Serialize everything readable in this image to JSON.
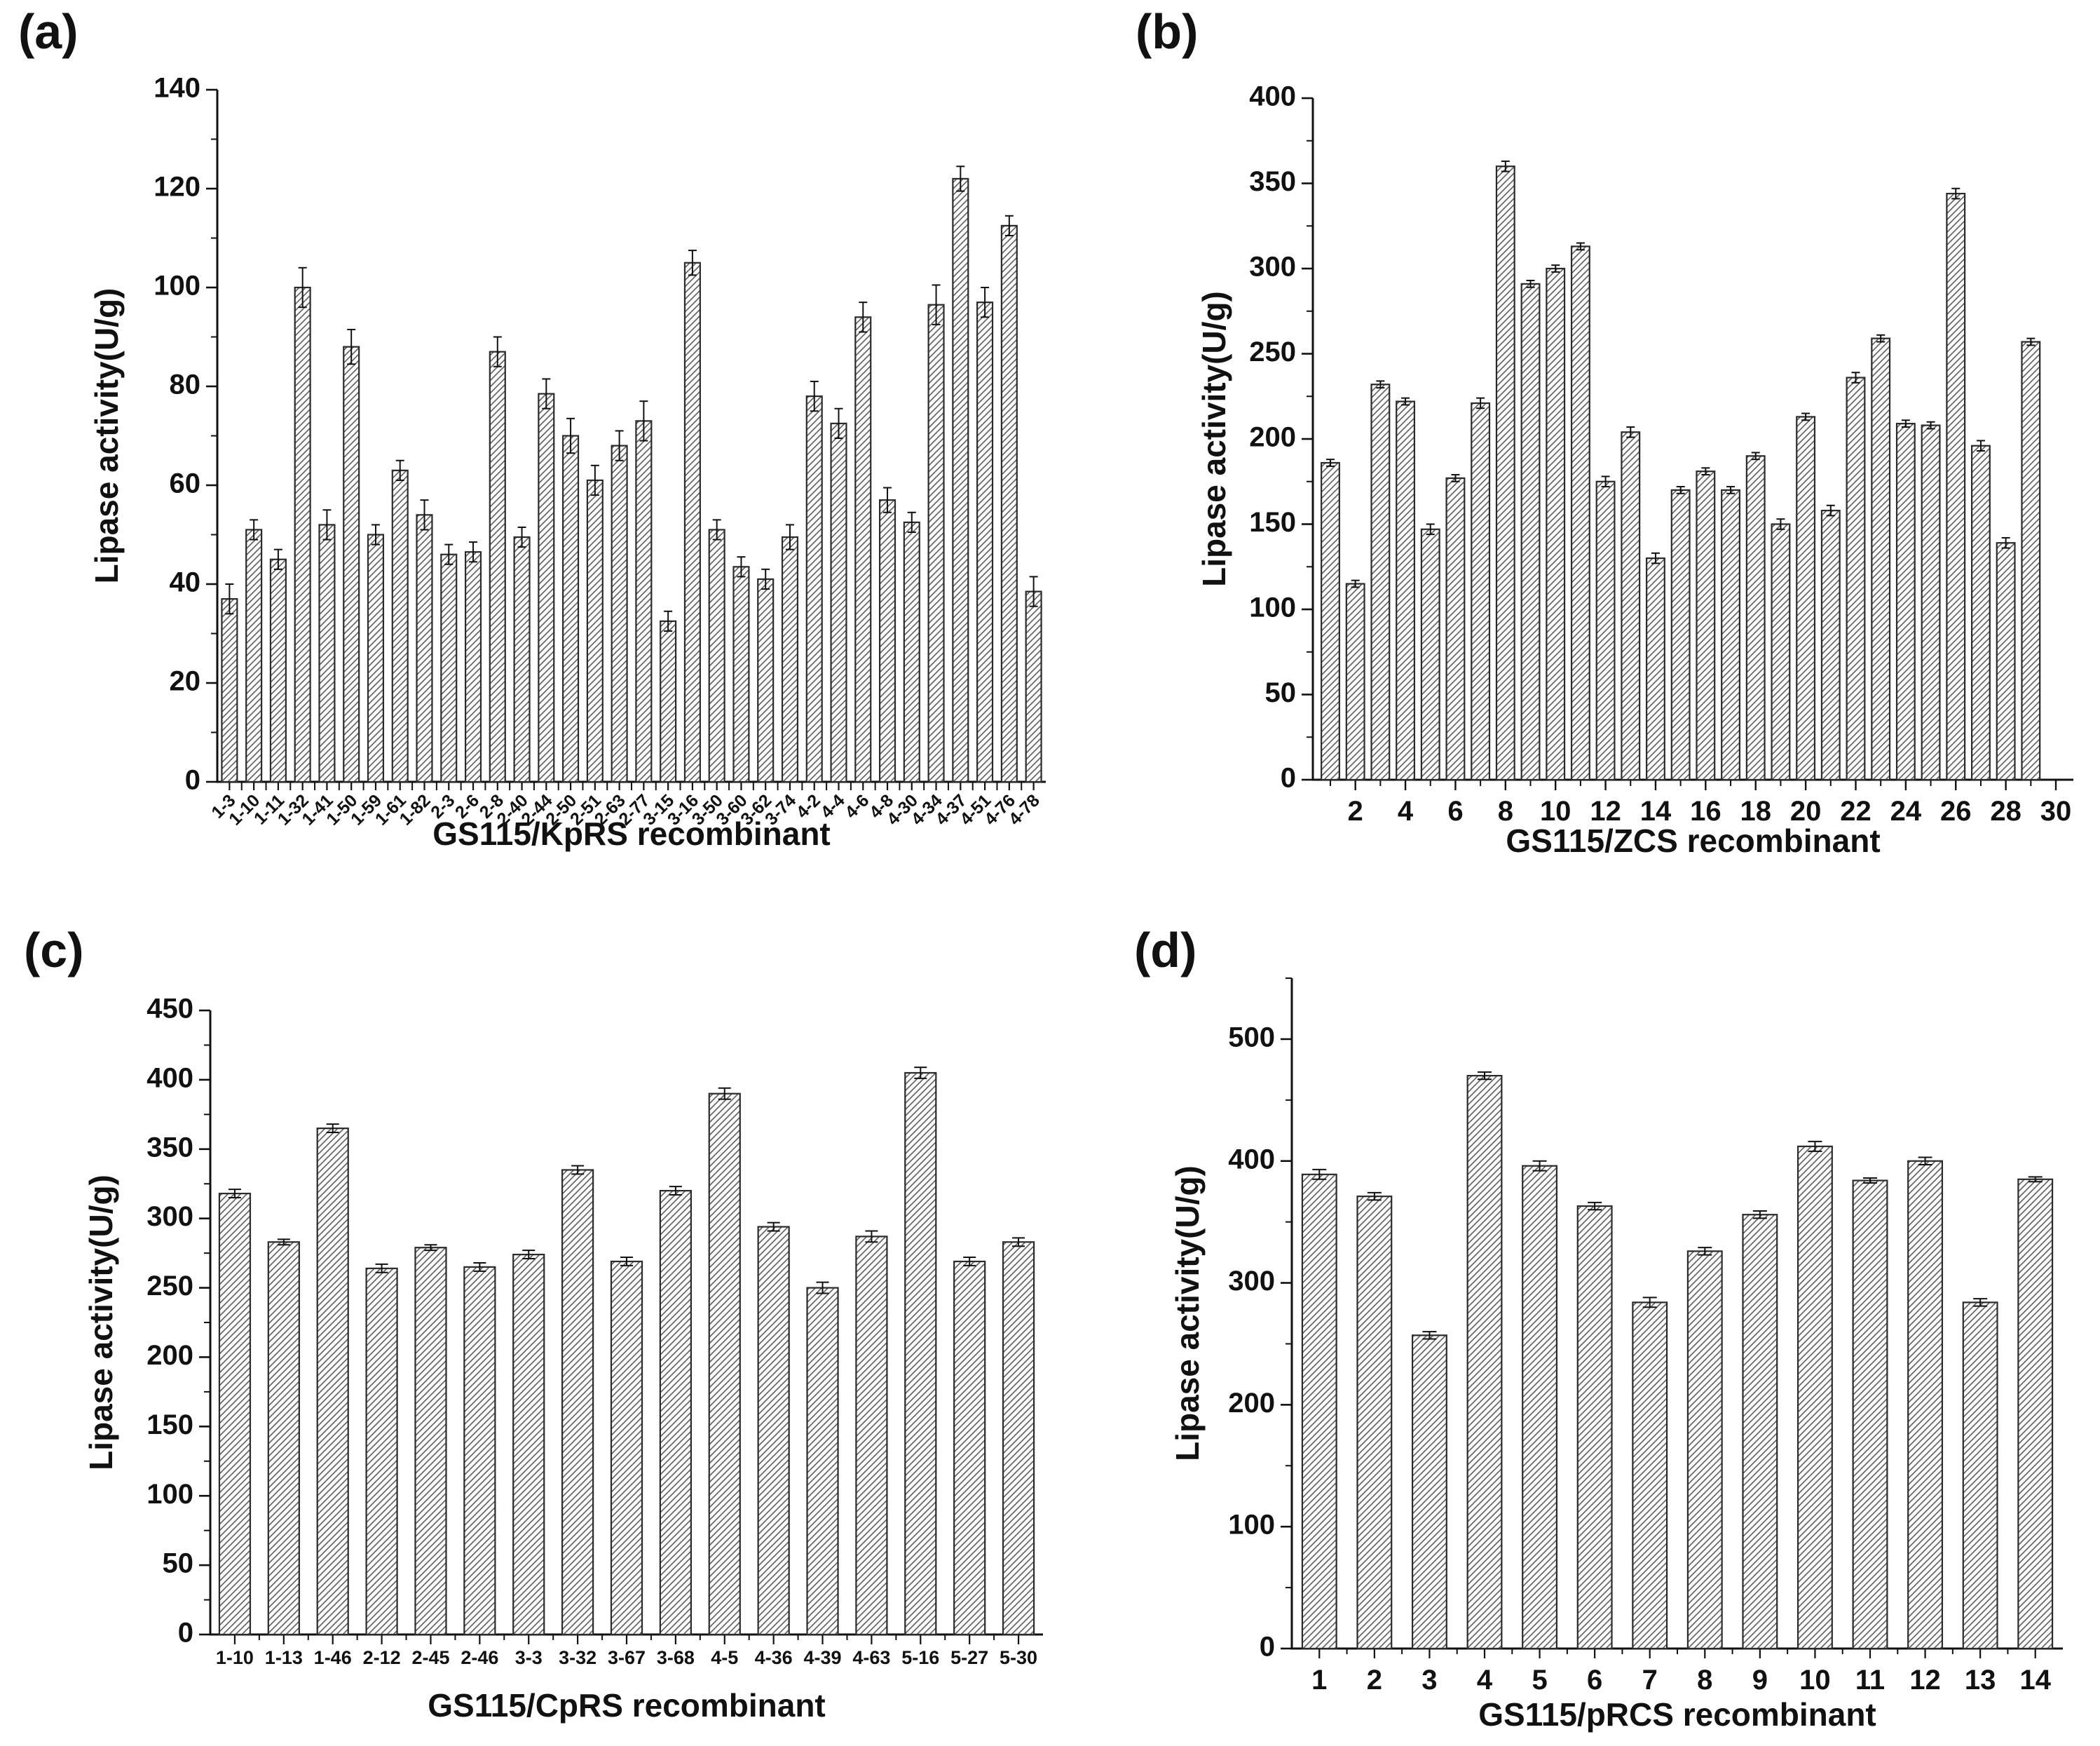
{
  "figure": {
    "panels": [
      {
        "id": "a",
        "letter": "(a)",
        "ylabel": "Lipase activity(U/g)",
        "xlabel": "GS115/KpRS recombinant",
        "y_top": 140,
        "y_major": 20,
        "y_minor": 10,
        "y_ticks": [
          "0",
          "20",
          "40",
          "60",
          "80",
          "100",
          "120",
          "140"
        ],
        "x_mode": "cat",
        "x_label_rotated": true,
        "categories": [
          "1-3",
          "1-10",
          "1-11",
          "1-32",
          "1-41",
          "1-50",
          "1-59",
          "1-61",
          "1-82",
          "2-3",
          "2-6",
          "2-8",
          "2-40",
          "2-44",
          "2-50",
          "2-51",
          "2-63",
          "2-77",
          "3-15",
          "3-16",
          "3-50",
          "3-60",
          "3-62",
          "3-74",
          "4-2",
          "4-4",
          "4-6",
          "4-8",
          "4-30",
          "4-34",
          "4-37",
          "4-51",
          "4-76",
          "4-78"
        ],
        "values": [
          37,
          51,
          45,
          100,
          52,
          88,
          50,
          63,
          54,
          46,
          46.5,
          87,
          49.5,
          78.5,
          70,
          61,
          68,
          73,
          32.5,
          105,
          51,
          43.5,
          41,
          49.5,
          78,
          72.5,
          94,
          57,
          52.5,
          96.5,
          122,
          97,
          112.5,
          38.5
        ],
        "errors": [
          3,
          2,
          2,
          4,
          3,
          3.5,
          2,
          2,
          3,
          2,
          2,
          3,
          2,
          3,
          3.5,
          3,
          3,
          4,
          2,
          2.5,
          2,
          2,
          2,
          2.5,
          3,
          3,
          3,
          2.5,
          2,
          4,
          2.5,
          3,
          2,
          3
        ]
      },
      {
        "id": "b",
        "letter": "(b)",
        "ylabel": "Lipase activity(U/g)",
        "xlabel": "GS115/ZCS recombinant",
        "y_top": 400,
        "y_major": 50,
        "y_minor": 25,
        "y_ticks": [
          "0",
          "50",
          "100",
          "150",
          "200",
          "250",
          "300",
          "350",
          "400"
        ],
        "x_mode": "num",
        "x_count": 29,
        "x_tick_max": 30,
        "x_label_every": 2,
        "x_ticks": [
          "2",
          "4",
          "6",
          "8",
          "10",
          "12",
          "14",
          "16",
          "18",
          "20",
          "22",
          "24",
          "26",
          "28",
          "30"
        ],
        "values": [
          186,
          115,
          232,
          222,
          147,
          177,
          221,
          360,
          291,
          300,
          313,
          175,
          204,
          130,
          170,
          181,
          170,
          190,
          150,
          213,
          158,
          236,
          259,
          209,
          208,
          344,
          196,
          139,
          257
        ],
        "errors": [
          2,
          2,
          2,
          2,
          3,
          2,
          3,
          3,
          2,
          2,
          2,
          3,
          3,
          3,
          2,
          2,
          2,
          2,
          3,
          2,
          3,
          3,
          2,
          2,
          2,
          3,
          3,
          3,
          2
        ]
      },
      {
        "id": "c",
        "letter": "(c)",
        "ylabel": "Lipase activity(U/g)",
        "xlabel": "GS115/CpRS  recombinant",
        "y_top": 450,
        "y_major": 50,
        "y_minor": 25,
        "y_ticks": [
          "0",
          "50",
          "100",
          "150",
          "200",
          "250",
          "300",
          "350",
          "400",
          "450"
        ],
        "x_mode": "cat",
        "x_label_rotated": false,
        "categories": [
          "1-10",
          "1-13",
          "1-46",
          "2-12",
          "2-45",
          "2-46",
          "3-3",
          "3-32",
          "3-67",
          "3-68",
          "4-5",
          "4-36",
          "4-39",
          "4-63",
          "5-16",
          "5-27",
          "5-30"
        ],
        "values": [
          318,
          283,
          365,
          264,
          279,
          265,
          274,
          335,
          269,
          320,
          390,
          294,
          250,
          287,
          405,
          269,
          283
        ],
        "errors": [
          3,
          2,
          3,
          3,
          2,
          3,
          3,
          3,
          3,
          3,
          4,
          3,
          4,
          4,
          4,
          3,
          3
        ]
      },
      {
        "id": "d",
        "letter": "(d)",
        "ylabel": "Lipase activity(U/g)",
        "xlabel": "GS115/pRCS recombinant",
        "y_top": 550,
        "y_major": 100,
        "y_minor": 50,
        "y_ticks": [
          "0",
          "100",
          "200",
          "300",
          "400",
          "500"
        ],
        "x_mode": "cat",
        "x_label_rotated": false,
        "categories": [
          "1",
          "2",
          "3",
          "4",
          "5",
          "6",
          "7",
          "8",
          "9",
          "10",
          "11",
          "12",
          "13",
          "14"
        ],
        "values": [
          389,
          371,
          257,
          470,
          396,
          363,
          284,
          326,
          356,
          412,
          384,
          400,
          284,
          385
        ],
        "errors": [
          4,
          3,
          3,
          3,
          4,
          3,
          4,
          3,
          3,
          4,
          2,
          3,
          3,
          2
        ]
      }
    ]
  },
  "chart_data": [
    {
      "type": "bar",
      "title": "",
      "xlabel": "GS115/KpRS recombinant",
      "ylabel": "Lipase activity(U/g)",
      "ylim": [
        0,
        140
      ],
      "grid": false,
      "categories": [
        "1-3",
        "1-10",
        "1-11",
        "1-32",
        "1-41",
        "1-50",
        "1-59",
        "1-61",
        "1-82",
        "2-3",
        "2-6",
        "2-8",
        "2-40",
        "2-44",
        "2-50",
        "2-51",
        "2-63",
        "2-77",
        "3-15",
        "3-16",
        "3-50",
        "3-60",
        "3-62",
        "3-74",
        "4-2",
        "4-4",
        "4-6",
        "4-8",
        "4-30",
        "4-34",
        "4-37",
        "4-51",
        "4-76",
        "4-78"
      ],
      "values": [
        37,
        51,
        45,
        100,
        52,
        88,
        50,
        63,
        54,
        46,
        46.5,
        87,
        49.5,
        78.5,
        70,
        61,
        68,
        73,
        32.5,
        105,
        51,
        43.5,
        41,
        49.5,
        78,
        72.5,
        94,
        57,
        52.5,
        96.5,
        122,
        97,
        112.5,
        38.5
      ]
    },
    {
      "type": "bar",
      "title": "",
      "xlabel": "GS115/ZCS recombinant",
      "ylabel": "Lipase activity(U/g)",
      "ylim": [
        0,
        400
      ],
      "grid": false,
      "categories": [
        "1",
        "2",
        "3",
        "4",
        "5",
        "6",
        "7",
        "8",
        "9",
        "10",
        "11",
        "12",
        "13",
        "14",
        "15",
        "16",
        "17",
        "18",
        "19",
        "20",
        "21",
        "22",
        "23",
        "24",
        "25",
        "26",
        "27",
        "28",
        "29"
      ],
      "values": [
        186,
        115,
        232,
        222,
        147,
        177,
        221,
        360,
        291,
        300,
        313,
        175,
        204,
        130,
        170,
        181,
        170,
        190,
        150,
        213,
        158,
        236,
        259,
        209,
        208,
        344,
        196,
        139,
        257
      ]
    },
    {
      "type": "bar",
      "title": "",
      "xlabel": "GS115/CpRS  recombinant",
      "ylabel": "Lipase activity(U/g)",
      "ylim": [
        0,
        450
      ],
      "grid": false,
      "categories": [
        "1-10",
        "1-13",
        "1-46",
        "2-12",
        "2-45",
        "2-46",
        "3-3",
        "3-32",
        "3-67",
        "3-68",
        "4-5",
        "4-36",
        "4-39",
        "4-63",
        "5-16",
        "5-27",
        "5-30"
      ],
      "values": [
        318,
        283,
        365,
        264,
        279,
        265,
        274,
        335,
        269,
        320,
        390,
        294,
        250,
        287,
        405,
        269,
        283
      ]
    },
    {
      "type": "bar",
      "title": "",
      "xlabel": "GS115/pRCS recombinant",
      "ylabel": "Lipase activity(U/g)",
      "ylim": [
        0,
        550
      ],
      "grid": false,
      "categories": [
        "1",
        "2",
        "3",
        "4",
        "5",
        "6",
        "7",
        "8",
        "9",
        "10",
        "11",
        "12",
        "13",
        "14"
      ],
      "values": [
        389,
        371,
        257,
        470,
        396,
        363,
        284,
        326,
        356,
        412,
        384,
        400,
        284,
        385
      ]
    }
  ]
}
